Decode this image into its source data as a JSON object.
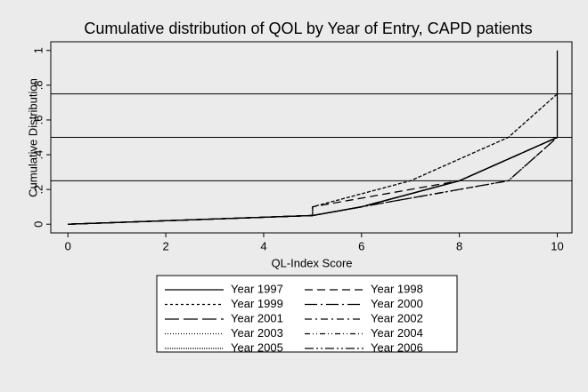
{
  "chart_data": {
    "type": "line",
    "title": "Cumulative distribution of QOL by Year of Entry, CAPD patients",
    "x_label": "QL-Index Score",
    "y_label": "Cumulative Distribution",
    "xlim": [
      -0.35,
      10.3
    ],
    "ylim": [
      -0.05,
      1.05
    ],
    "xticks": [
      0,
      2,
      4,
      6,
      8,
      10
    ],
    "yticks": [
      0,
      {
        "value": 0.2,
        "label": ".2"
      },
      {
        "value": 0.4,
        "label": ".4"
      },
      {
        "value": 0.6,
        "label": ".6"
      },
      {
        "value": 0.8,
        "label": ".8"
      },
      1
    ],
    "reference_lines": [
      0.25,
      0.5,
      0.75
    ],
    "series": [
      {
        "name": "Year 1997",
        "color": "#000000",
        "dash": "none",
        "x": [
          0,
          2,
          4,
          5,
          6,
          8,
          10,
          10
        ],
        "values": [
          0,
          0.02,
          0.04,
          0.05,
          0.1,
          0.25,
          0.5,
          1
        ]
      },
      {
        "name": "Year 1998",
        "color": "#000000",
        "dash": "9 5",
        "x": [
          0,
          5,
          5,
          8,
          10
        ],
        "values": [
          0,
          0.05,
          0.1,
          0.25,
          0.5
        ]
      },
      {
        "name": "Year 1999",
        "color": "#000000",
        "dash": "3 3",
        "x": [
          0,
          5,
          5,
          7,
          9,
          10
        ],
        "values": [
          0,
          0.05,
          0.1,
          0.25,
          0.5,
          0.75
        ]
      },
      {
        "name": "Year 2000",
        "color": "#000000",
        "dash": "14 4 2 4",
        "x": [
          0,
          5,
          6,
          8,
          10
        ],
        "values": [
          0,
          0.05,
          0.1,
          0.25,
          0.5
        ]
      },
      {
        "name": "Year 2001",
        "color": "#000000",
        "dash": "16 5",
        "x": [
          0,
          5,
          6,
          8,
          10
        ],
        "values": [
          0,
          0.05,
          0.1,
          0.25,
          0.5
        ]
      },
      {
        "name": "Year 2002",
        "color": "#000000",
        "dash": "8 4 2 4",
        "x": [
          0,
          5,
          6,
          9,
          10
        ],
        "values": [
          0,
          0.05,
          0.1,
          0.25,
          0.5
        ]
      },
      {
        "name": "Year 2003",
        "color": "#000000",
        "dash": "1 2",
        "x": [
          0,
          5,
          5,
          7,
          9,
          10
        ],
        "values": [
          0,
          0.05,
          0.1,
          0.25,
          0.5,
          0.75
        ]
      },
      {
        "name": "Year 2004",
        "color": "#000000",
        "dash": "6 3 1 3 1 3",
        "x": [
          0,
          5,
          6,
          8,
          10
        ],
        "values": [
          0,
          0.05,
          0.1,
          0.25,
          0.5
        ]
      },
      {
        "name": "Year 2005",
        "color": "#000000",
        "dash": "1 1",
        "x": [
          0,
          5,
          6,
          8,
          10
        ],
        "values": [
          0,
          0.05,
          0.1,
          0.25,
          0.5
        ]
      },
      {
        "name": "Year 2006",
        "color": "#000000",
        "dash": "10 3 2 3 2 3",
        "x": [
          0,
          5,
          6,
          9,
          10
        ],
        "values": [
          0,
          0.05,
          0.1,
          0.25,
          0.5
        ]
      }
    ]
  }
}
